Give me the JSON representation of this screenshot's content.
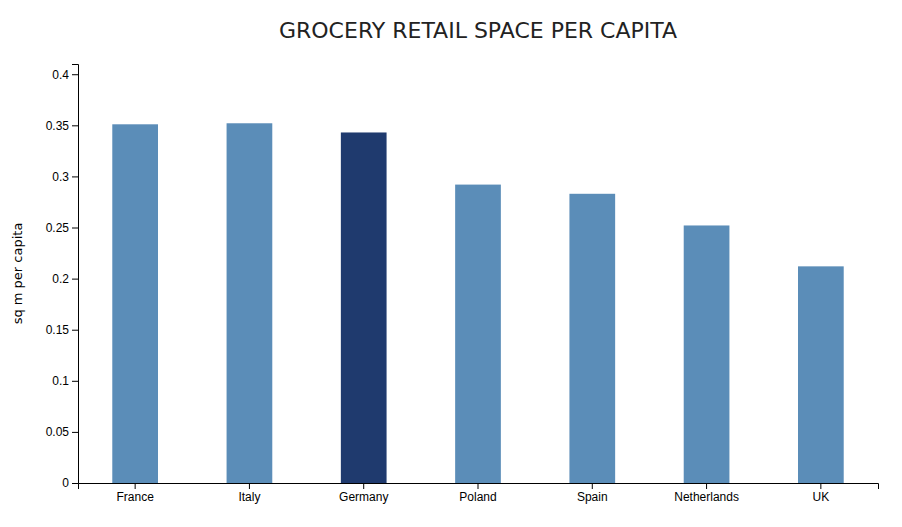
{
  "chart_data": {
    "type": "bar",
    "title": "GROCERY RETAIL SPACE PER CAPITA",
    "ylabel": "sq m per capita",
    "categories": [
      "France",
      "Italy",
      "Germany",
      "Poland",
      "Spain",
      "Netherlands",
      "UK"
    ],
    "values": [
      0.351,
      0.352,
      0.343,
      0.292,
      0.283,
      0.252,
      0.212
    ],
    "colors": [
      "#5b8db8",
      "#5b8db8",
      "#1f3a6e",
      "#5b8db8",
      "#5b8db8",
      "#5b8db8",
      "#5b8db8"
    ],
    "ylim": [
      0,
      0.41
    ],
    "yticks": [
      0,
      0.05,
      0.1,
      0.15,
      0.2,
      0.25,
      0.3,
      0.35,
      0.4
    ],
    "grid": false
  }
}
